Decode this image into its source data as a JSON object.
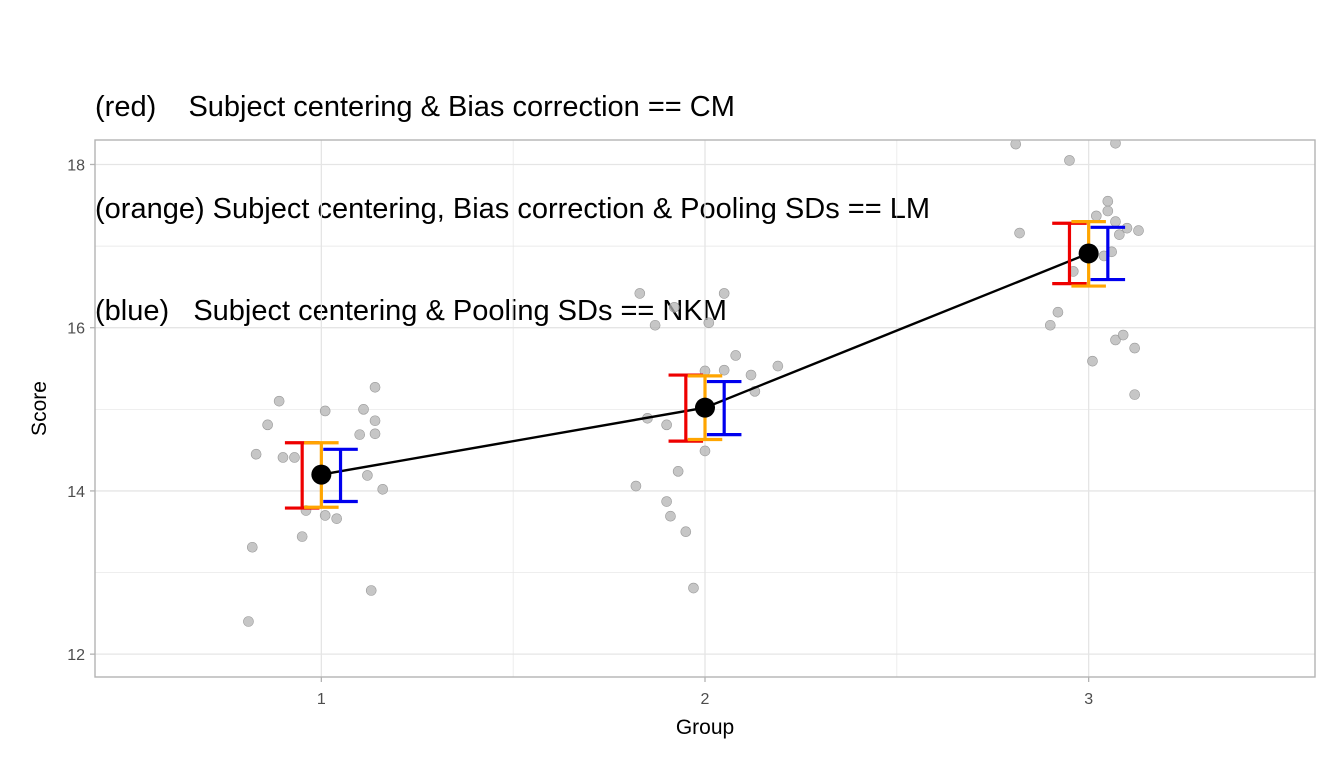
{
  "title_lines": [
    "(red)    Subject centering & Bias correction == CM",
    "(orange) Subject centering, Bias correction & Pooling SDs == LM",
    "(blue)   Subject centering & Pooling SDs == NKM"
  ],
  "colors": {
    "red": "#ee0000",
    "orange": "#ffa500",
    "blue": "#0000ee",
    "mean_point": "#000000",
    "raw_point": "#b3b3b3",
    "grid": "#e5e5e5",
    "panel_border": "#b3b3b3"
  },
  "chart_data": {
    "type": "scatter",
    "xlabel": "Group",
    "ylabel": "Score",
    "xlim": [
      0.41,
      3.59
    ],
    "ylim": [
      11.72,
      18.3
    ],
    "x_ticks": [
      "1",
      "2",
      "3"
    ],
    "y_ticks": [
      "12",
      "14",
      "16",
      "18"
    ],
    "grid": true,
    "means": [
      {
        "group": 1,
        "mean": 14.2
      },
      {
        "group": 2,
        "mean": 15.02
      },
      {
        "group": 3,
        "mean": 16.91
      }
    ],
    "error_bars": [
      {
        "color": "red",
        "intervals": [
          [
            13.79,
            14.59
          ],
          [
            14.61,
            15.42
          ],
          [
            16.54,
            17.28
          ]
        ]
      },
      {
        "color": "orange",
        "intervals": [
          [
            13.8,
            14.59
          ],
          [
            14.63,
            15.41
          ],
          [
            16.51,
            17.3
          ]
        ]
      },
      {
        "color": "blue",
        "intervals": [
          [
            13.87,
            14.51
          ],
          [
            14.69,
            15.34
          ],
          [
            16.59,
            17.23
          ]
        ]
      }
    ],
    "raw_points": [
      {
        "x": 0.81,
        "y": 12.4
      },
      {
        "x": 0.82,
        "y": 13.31
      },
      {
        "x": 0.83,
        "y": 14.45
      },
      {
        "x": 0.86,
        "y": 14.81
      },
      {
        "x": 0.89,
        "y": 15.1
      },
      {
        "x": 0.9,
        "y": 14.41
      },
      {
        "x": 0.93,
        "y": 14.41
      },
      {
        "x": 0.95,
        "y": 13.44
      },
      {
        "x": 0.96,
        "y": 13.76
      },
      {
        "x": 1.01,
        "y": 14.98
      },
      {
        "x": 1.01,
        "y": 13.7
      },
      {
        "x": 1.04,
        "y": 13.66
      },
      {
        "x": 1.1,
        "y": 14.69
      },
      {
        "x": 1.11,
        "y": 15.0
      },
      {
        "x": 1.12,
        "y": 14.19
      },
      {
        "x": 1.13,
        "y": 12.78
      },
      {
        "x": 1.14,
        "y": 15.27
      },
      {
        "x": 1.14,
        "y": 14.86
      },
      {
        "x": 1.14,
        "y": 14.7
      },
      {
        "x": 1.16,
        "y": 14.02
      },
      {
        "x": 1.82,
        "y": 14.06
      },
      {
        "x": 1.83,
        "y": 16.42
      },
      {
        "x": 1.85,
        "y": 14.89
      },
      {
        "x": 1.87,
        "y": 16.03
      },
      {
        "x": 1.9,
        "y": 13.87
      },
      {
        "x": 1.9,
        "y": 14.81
      },
      {
        "x": 1.91,
        "y": 13.69
      },
      {
        "x": 1.92,
        "y": 16.25
      },
      {
        "x": 1.93,
        "y": 14.24
      },
      {
        "x": 1.95,
        "y": 13.5
      },
      {
        "x": 1.97,
        "y": 12.81
      },
      {
        "x": 2.0,
        "y": 15.47
      },
      {
        "x": 2.0,
        "y": 14.49
      },
      {
        "x": 2.01,
        "y": 16.06
      },
      {
        "x": 2.05,
        "y": 16.42
      },
      {
        "x": 2.05,
        "y": 15.48
      },
      {
        "x": 2.08,
        "y": 15.66
      },
      {
        "x": 2.12,
        "y": 15.42
      },
      {
        "x": 2.13,
        "y": 15.22
      },
      {
        "x": 2.19,
        "y": 15.53
      },
      {
        "x": 2.81,
        "y": 18.25
      },
      {
        "x": 2.82,
        "y": 17.16
      },
      {
        "x": 2.9,
        "y": 16.03
      },
      {
        "x": 2.92,
        "y": 16.19
      },
      {
        "x": 2.95,
        "y": 18.05
      },
      {
        "x": 2.96,
        "y": 16.69
      },
      {
        "x": 3.01,
        "y": 15.59
      },
      {
        "x": 3.02,
        "y": 17.37
      },
      {
        "x": 3.04,
        "y": 16.88
      },
      {
        "x": 3.05,
        "y": 17.55
      },
      {
        "x": 3.05,
        "y": 17.43
      },
      {
        "x": 3.06,
        "y": 16.93
      },
      {
        "x": 3.07,
        "y": 15.85
      },
      {
        "x": 3.07,
        "y": 17.3
      },
      {
        "x": 3.07,
        "y": 18.26
      },
      {
        "x": 3.08,
        "y": 17.14
      },
      {
        "x": 3.09,
        "y": 15.91
      },
      {
        "x": 3.1,
        "y": 17.22
      },
      {
        "x": 3.12,
        "y": 15.75
      },
      {
        "x": 3.12,
        "y": 15.18
      },
      {
        "x": 3.13,
        "y": 17.19
      }
    ]
  }
}
